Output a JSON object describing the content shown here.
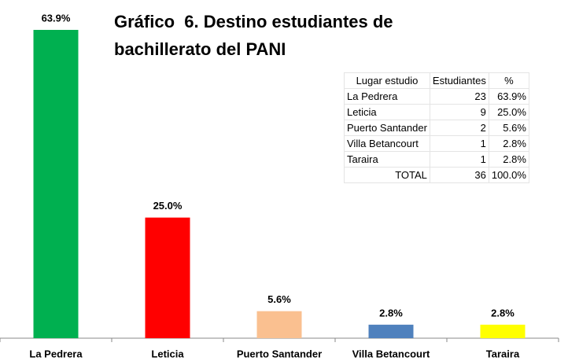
{
  "chart_data": {
    "type": "bar",
    "title": "Gráfico  6. Destino estudiantes de bachillerato del PANI",
    "categories": [
      "La Pedrera",
      "Leticia",
      "Puerto Santander",
      "Villa Betancourt",
      "Taraira"
    ],
    "values": [
      63.9,
      25.0,
      5.6,
      2.8,
      2.8
    ],
    "value_labels": [
      "63.9%",
      "25.0%",
      "5.6%",
      "2.8%",
      "2.8%"
    ],
    "colors": [
      "#00b050",
      "#ff0000",
      "#fac090",
      "#4f81bd",
      "#ffff00"
    ]
  },
  "table": {
    "header": [
      "Lugar estudio",
      "Estudiantes",
      "%"
    ],
    "rows": [
      [
        "La Pedrera",
        "23",
        "63.9%"
      ],
      [
        "Leticia",
        "9",
        "25.0%"
      ],
      [
        "Puerto Santander",
        "2",
        "5.6%"
      ],
      [
        "Villa Betancourt",
        "1",
        "2.8%"
      ],
      [
        "Taraira",
        "1",
        "2.8%"
      ],
      [
        "TOTAL",
        "36",
        "100.0%"
      ]
    ]
  }
}
